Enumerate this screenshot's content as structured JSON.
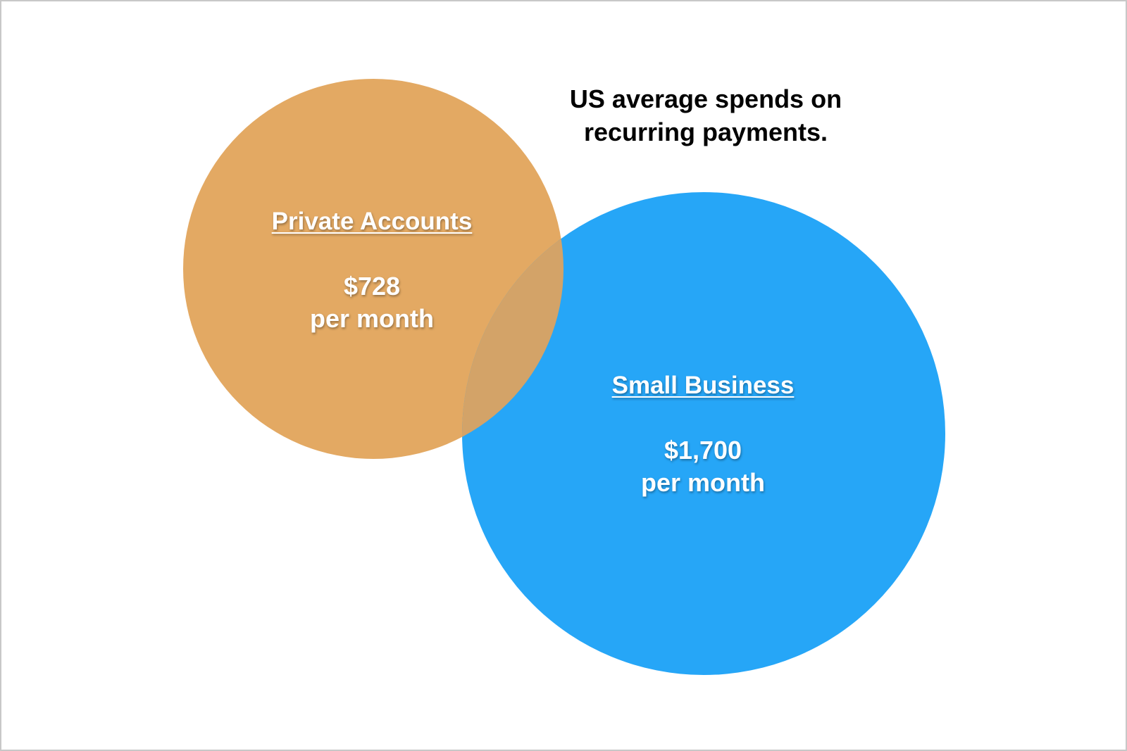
{
  "title": {
    "line1": "US average spends on",
    "line2": "recurring payments."
  },
  "sets": [
    {
      "name": "Private Accounts",
      "amount": "$728",
      "period": "per month",
      "color": "#E3A963"
    },
    {
      "name": "Small Business",
      "amount": "$1,700",
      "period": "per month",
      "color": "#26A6F7"
    }
  ],
  "overlap_color": "#D3A368"
}
